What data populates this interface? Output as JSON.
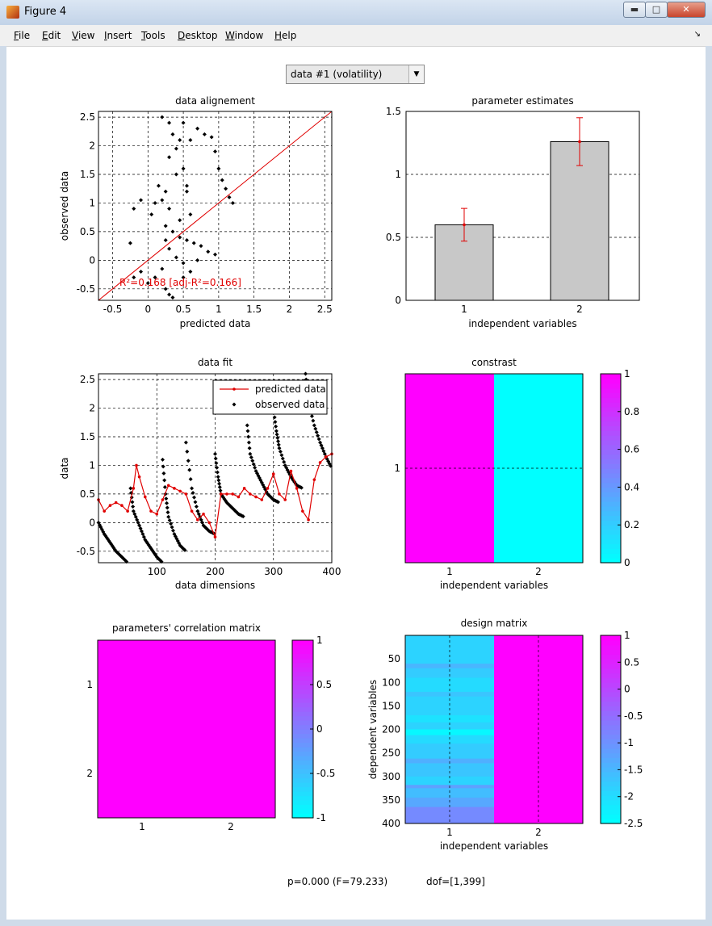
{
  "window": {
    "title": "Figure 4",
    "buttons": [
      "minimize",
      "maximize",
      "close"
    ]
  },
  "menu": [
    "File",
    "Edit",
    "View",
    "Insert",
    "Tools",
    "Desktop",
    "Window",
    "Help"
  ],
  "dropdown": {
    "value": "data #1 (volatility)"
  },
  "status": {
    "p": "p=0.000 (F=79.233)",
    "dof": "dof=[1,399]"
  },
  "colors": {
    "cyan": "#00ffff",
    "magenta": "#ff00ff",
    "red": "#e00000",
    "bar": "#c8c8c8"
  },
  "chart_data": [
    {
      "id": "alignment",
      "type": "scatter",
      "title": "data alignement",
      "xlabel": "predicted data",
      "ylabel": "observed data",
      "xlim": [
        -0.7,
        2.6
      ],
      "ylim": [
        -0.7,
        2.6
      ],
      "xticks": [
        -0.5,
        0,
        0.5,
        1,
        1.5,
        2,
        2.5
      ],
      "yticks": [
        -0.5,
        0,
        0.5,
        1,
        1.5,
        2,
        2.5
      ],
      "annotation": "R²=0.168 [adj-R²=0.166]",
      "identity_line": true,
      "points": [
        [
          0.2,
          2.5
        ],
        [
          0.3,
          2.4
        ],
        [
          0.35,
          2.2
        ],
        [
          0.5,
          2.4
        ],
        [
          0.6,
          2.1
        ],
        [
          0.7,
          2.3
        ],
        [
          0.8,
          2.2
        ],
        [
          0.9,
          2.15
        ],
        [
          0.95,
          1.9
        ],
        [
          1.0,
          1.6
        ],
        [
          1.05,
          1.4
        ],
        [
          1.1,
          1.25
        ],
        [
          1.15,
          1.1
        ],
        [
          1.2,
          1.0
        ],
        [
          0.3,
          1.8
        ],
        [
          0.4,
          1.5
        ],
        [
          0.5,
          1.6
        ],
        [
          0.55,
          1.3
        ],
        [
          0.25,
          1.2
        ],
        [
          0.2,
          1.05
        ],
        [
          0.3,
          0.9
        ],
        [
          0.1,
          1.0
        ],
        [
          -0.1,
          1.05
        ],
        [
          -0.2,
          0.9
        ],
        [
          0.05,
          0.8
        ],
        [
          0.25,
          0.6
        ],
        [
          0.35,
          0.5
        ],
        [
          0.45,
          0.4
        ],
        [
          0.55,
          0.35
        ],
        [
          0.65,
          0.3
        ],
        [
          0.75,
          0.25
        ],
        [
          0.85,
          0.15
        ],
        [
          0.95,
          0.1
        ],
        [
          0.3,
          0.2
        ],
        [
          0.4,
          0.05
        ],
        [
          0.5,
          -0.05
        ],
        [
          0.2,
          -0.15
        ],
        [
          0.1,
          -0.3
        ],
        [
          0.0,
          -0.4
        ],
        [
          -0.1,
          -0.2
        ],
        [
          -0.2,
          -0.3
        ],
        [
          0.25,
          -0.5
        ],
        [
          0.3,
          -0.6
        ],
        [
          0.35,
          -0.65
        ],
        [
          0.5,
          -0.3
        ],
        [
          0.6,
          -0.2
        ],
        [
          0.7,
          0.0
        ],
        [
          0.45,
          0.7
        ],
        [
          0.6,
          0.8
        ],
        [
          -0.25,
          0.3
        ],
        [
          0.15,
          1.3
        ],
        [
          0.4,
          1.95
        ],
        [
          0.45,
          2.1
        ],
        [
          0.55,
          1.2
        ],
        [
          0.25,
          0.35
        ]
      ]
    },
    {
      "id": "estimates",
      "type": "bar",
      "title": "parameter estimates",
      "xlabel": "independent variables",
      "ylabel": "",
      "categories": [
        "1",
        "2"
      ],
      "values": [
        0.6,
        1.26
      ],
      "errors": [
        0.13,
        0.19
      ],
      "ylim": [
        0,
        1.5
      ],
      "yticks": [
        0,
        0.5,
        1,
        1.5
      ]
    },
    {
      "id": "fit",
      "type": "line",
      "title": "data fit",
      "xlabel": "data dimensions",
      "ylabel": "data",
      "xlim": [
        0,
        400
      ],
      "ylim": [
        -0.7,
        2.6
      ],
      "xticks": [
        100,
        200,
        300,
        400
      ],
      "yticks": [
        -0.5,
        0,
        0.5,
        1,
        1.5,
        2,
        2.5
      ],
      "series": [
        {
          "name": "predicted data",
          "x": [
            0,
            10,
            20,
            30,
            40,
            50,
            60,
            65,
            70,
            80,
            90,
            100,
            110,
            120,
            130,
            140,
            150,
            160,
            170,
            180,
            190,
            200,
            210,
            220,
            230,
            240,
            250,
            260,
            270,
            280,
            290,
            300,
            310,
            320,
            330,
            340,
            350,
            360,
            370,
            380,
            390,
            400
          ],
          "y": [
            0.4,
            0.2,
            0.3,
            0.35,
            0.3,
            0.2,
            0.6,
            1.0,
            0.8,
            0.45,
            0.2,
            0.15,
            0.4,
            0.65,
            0.6,
            0.55,
            0.5,
            0.2,
            0.05,
            0.15,
            0.0,
            -0.25,
            0.5,
            0.5,
            0.5,
            0.45,
            0.6,
            0.5,
            0.45,
            0.4,
            0.6,
            0.85,
            0.5,
            0.4,
            0.9,
            0.6,
            0.2,
            0.05,
            0.75,
            1.05,
            1.15,
            1.2
          ]
        },
        {
          "name": "observed data",
          "segments": [
            {
              "x": [
                0,
                10,
                20,
                30,
                40,
                50
              ],
              "y": [
                0.0,
                -0.2,
                -0.35,
                -0.5,
                -0.6,
                -0.7
              ]
            },
            {
              "x": [
                55,
                60,
                70,
                80,
                90,
                100,
                110
              ],
              "y": [
                0.6,
                0.2,
                -0.05,
                -0.3,
                -0.45,
                -0.6,
                -0.7
              ]
            },
            {
              "x": [
                110,
                115,
                120,
                130,
                140,
                150
              ],
              "y": [
                1.1,
                0.5,
                0.1,
                -0.2,
                -0.4,
                -0.5
              ]
            },
            {
              "x": [
                150,
                160,
                170,
                180,
                190,
                200
              ],
              "y": [
                1.4,
                0.6,
                0.2,
                -0.05,
                -0.15,
                -0.2
              ]
            },
            {
              "x": [
                200,
                205,
                210,
                220,
                230,
                240,
                250
              ],
              "y": [
                1.2,
                0.8,
                0.5,
                0.35,
                0.25,
                0.15,
                0.1
              ]
            },
            {
              "x": [
                255,
                260,
                270,
                280,
                290,
                300,
                310
              ],
              "y": [
                1.7,
                1.2,
                0.9,
                0.7,
                0.5,
                0.4,
                0.35
              ]
            },
            {
              "x": [
                300,
                305,
                310,
                320,
                330,
                340,
                350
              ],
              "y": [
                2.0,
                1.6,
                1.3,
                1.0,
                0.8,
                0.65,
                0.6
              ]
            },
            {
              "x": [
                340,
                345,
                355,
                360,
                370,
                380,
                390,
                400
              ],
              "y": [
                2.3,
                1.95,
                2.6,
                2.1,
                1.7,
                1.4,
                1.15,
                0.95
              ]
            }
          ]
        }
      ],
      "legend": "top-right"
    },
    {
      "id": "contrast",
      "type": "heatmap",
      "title": "constrast",
      "xlabel": "independent variables",
      "ylabel": "",
      "xticks": [
        "1",
        "2"
      ],
      "yticks": [
        "1"
      ],
      "values": [
        [
          1,
          0
        ]
      ],
      "colorbar": {
        "range": [
          0,
          1
        ],
        "ticks": [
          0,
          0.2,
          0.4,
          0.6,
          0.8,
          1
        ]
      }
    },
    {
      "id": "correlation",
      "type": "heatmap",
      "title": "parameters' correlation matrix",
      "xlabel": "",
      "ylabel": "",
      "xticks": [
        "1",
        "2"
      ],
      "yticks": [
        "1",
        "2"
      ],
      "values": [
        [
          1,
          1
        ],
        [
          1,
          1
        ]
      ],
      "colorbar": {
        "range": [
          -1,
          1
        ],
        "ticks": [
          -1,
          -0.5,
          0,
          0.5,
          1
        ]
      }
    },
    {
      "id": "design",
      "type": "heatmap",
      "title": "design matrix",
      "xlabel": "independent variables",
      "ylabel": "dependent variables",
      "xticks": [
        "1",
        "2"
      ],
      "yticks": [
        50,
        100,
        150,
        200,
        250,
        300,
        350,
        400
      ],
      "rows": 400,
      "column1_bands": [
        [
          0,
          60,
          -1.9
        ],
        [
          60,
          70,
          -1.5
        ],
        [
          70,
          90,
          -1.8
        ],
        [
          90,
          120,
          -2.0
        ],
        [
          120,
          130,
          -1.7
        ],
        [
          130,
          170,
          -1.9
        ],
        [
          170,
          185,
          -2.1
        ],
        [
          185,
          200,
          -1.9
        ],
        [
          200,
          212,
          -2.4
        ],
        [
          212,
          230,
          -2.0
        ],
        [
          230,
          262,
          -1.8
        ],
        [
          262,
          272,
          -1.4
        ],
        [
          272,
          300,
          -1.7
        ],
        [
          300,
          318,
          -1.9
        ],
        [
          318,
          325,
          -1.2
        ],
        [
          325,
          345,
          -1.6
        ],
        [
          345,
          365,
          -1.3
        ],
        [
          365,
          400,
          -0.9
        ]
      ],
      "column2_value": 1,
      "colorbar": {
        "range": [
          -2.5,
          1
        ],
        "ticks": [
          -2.5,
          -2,
          -1.5,
          -1,
          -0.5,
          0,
          0.5,
          1
        ]
      }
    }
  ]
}
